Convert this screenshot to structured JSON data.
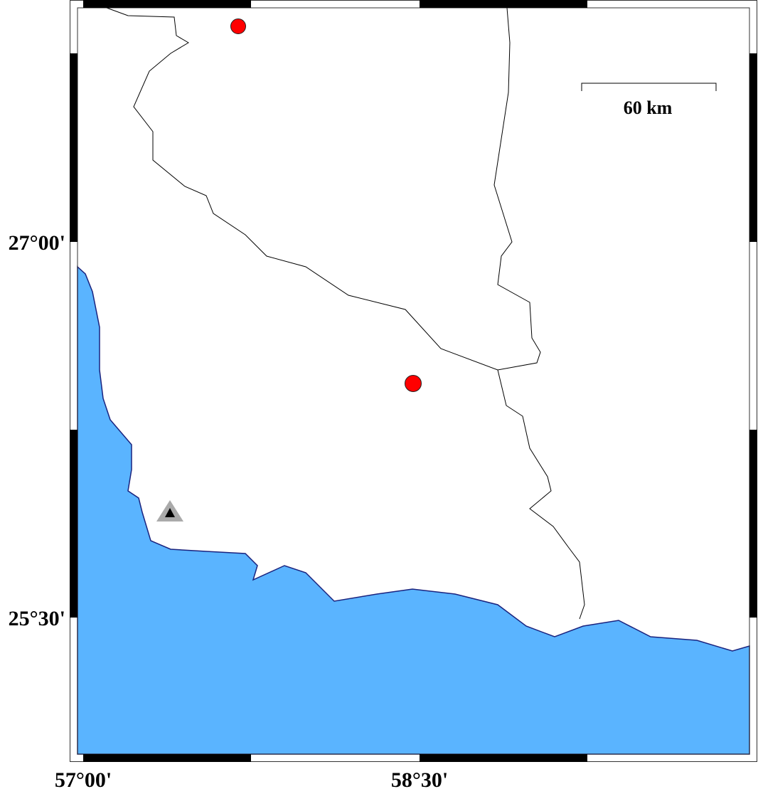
{
  "map": {
    "colors": {
      "sea": "#5ab4ff",
      "coastline": "#1a237e",
      "land": "#ffffff",
      "border": "#000000",
      "event_marker": "#ff0000",
      "station_marker": "#aaaaaa"
    },
    "lat_labels": [
      "27°00'",
      "25°30'"
    ],
    "lon_labels": [
      "57°00'",
      "58°30'"
    ],
    "scale_bar": {
      "label": "60 km"
    },
    "markers": [
      {
        "type": "circle",
        "color": "red",
        "icon": "event-circle"
      },
      {
        "type": "circle",
        "color": "red",
        "icon": "event-circle"
      },
      {
        "type": "triangle",
        "color": "gray",
        "icon": "station-triangle"
      }
    ]
  }
}
